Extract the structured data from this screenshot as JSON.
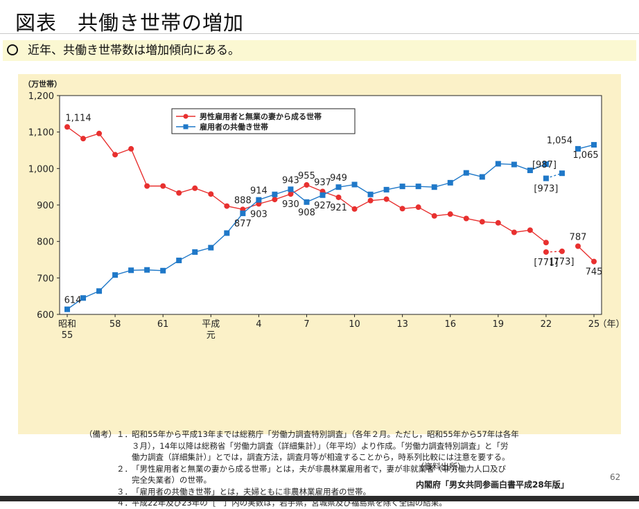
{
  "header": {
    "title": "図表　共働き世帯の増加"
  },
  "bullet": {
    "text": "近年、共働き世帯数は増加傾向にある。"
  },
  "notes": {
    "lead": "（備考）",
    "items": [
      {
        "num": "１．",
        "lines": [
          "昭和55年から平成13年までは総務庁「労働力調査特別調査」（各年２月。ただし，昭和55年から57年は各年",
          "３月），14年以降は総務省「労働力調査（詳細集計）」（年平均）より作成。「労働力調査特別調査」と「労",
          "働力調査（詳細集計）」とでは，調査方法，調査月等が相違することから，時系列比較には注意を要する。"
        ]
      },
      {
        "num": "２．",
        "lines": [
          "「男性雇用者と無業の妻から成る世帯」とは，夫が非農林業雇用者で，妻が非就業者（非労働力人口及び",
          "完全失業者）の世帯。"
        ]
      },
      {
        "num": "３．",
        "lines": [
          "「雇用者の共働き世帯」とは，夫婦ともに非農林業雇用者の世帯。"
        ]
      },
      {
        "num": "４．",
        "lines": [
          "平成22年及び23年の［　］内の実数は，岩手県，宮城県及び福島県を除く全国の結果。"
        ]
      }
    ]
  },
  "source": {
    "label": "（資料出所）",
    "text": "内閣府「男女共同参画白書平成28年版」"
  },
  "page_number": "62",
  "chart_data": {
    "type": "line",
    "ylabel": "（万世帯）",
    "xlabel": "（年）",
    "ylim": [
      600,
      1200
    ],
    "yticks": [
      600,
      700,
      800,
      900,
      1000,
      1100,
      1200
    ],
    "ytick_labels": [
      "600",
      "700",
      "800",
      "900",
      "1,000",
      "1,100",
      "1,200"
    ],
    "x": [
      1980,
      1981,
      1982,
      1983,
      1984,
      1985,
      1986,
      1987,
      1988,
      1989,
      1990,
      1991,
      1992,
      1993,
      1994,
      1995,
      1996,
      1997,
      1998,
      1999,
      2000,
      2001,
      2002,
      2003,
      2004,
      2005,
      2006,
      2007,
      2008,
      2009,
      2010,
      2011,
      2012,
      2013
    ],
    "xlim": [
      1980,
      2013
    ],
    "xticks": [
      {
        "x": 1980,
        "label": "昭和",
        "label2": "55"
      },
      {
        "x": 1983,
        "label": "58",
        "label2": ""
      },
      {
        "x": 1986,
        "label": "61",
        "label2": ""
      },
      {
        "x": 1989,
        "label": "平成",
        "label2": "元"
      },
      {
        "x": 1992,
        "label": "4",
        "label2": ""
      },
      {
        "x": 1995,
        "label": "7",
        "label2": ""
      },
      {
        "x": 1998,
        "label": "10",
        "label2": ""
      },
      {
        "x": 2001,
        "label": "13",
        "label2": ""
      },
      {
        "x": 2004,
        "label": "16",
        "label2": ""
      },
      {
        "x": 2007,
        "label": "19",
        "label2": ""
      },
      {
        "x": 2010,
        "label": "22",
        "label2": ""
      },
      {
        "x": 2013,
        "label": "25",
        "label2": ""
      }
    ],
    "series": [
      {
        "name": "男性雇用者と無業の妻から成る世帯",
        "color": "#e8302f",
        "marker": "circle",
        "values": [
          1114,
          1082,
          1096,
          1038,
          1054,
          952,
          952,
          933,
          946,
          930,
          897,
          888,
          903,
          915,
          930,
          955,
          937,
          921,
          889,
          912,
          916,
          890,
          894,
          870,
          875,
          863,
          854,
          851,
          825,
          831,
          797,
          null,
          787,
          745
        ],
        "bracketed": [
          {
            "x": 2010,
            "y": 771
          },
          {
            "x": 2011,
            "y": 773
          }
        ]
      },
      {
        "name": "雇用者の共働き世帯",
        "color": "#1f78c8",
        "marker": "square",
        "values": [
          614,
          645,
          664,
          708,
          721,
          722,
          720,
          748,
          771,
          783,
          823,
          877,
          914,
          929,
          943,
          908,
          927,
          949,
          956,
          929,
          942,
          951,
          951,
          949,
          961,
          988,
          977,
          1013,
          1011,
          995,
          1012,
          null,
          1054,
          1065
        ],
        "bracketed": [
          {
            "x": 2010,
            "y": 973
          },
          {
            "x": 2011,
            "y": 987
          }
        ]
      }
    ],
    "data_labels": [
      {
        "series": 0,
        "x": 1980,
        "y": 1114,
        "text": "1,114",
        "pos": "above"
      },
      {
        "series": 1,
        "x": 1980,
        "y": 614,
        "text": "614",
        "pos": "above"
      },
      {
        "series": 0,
        "x": 1991,
        "y": 888,
        "text": "888",
        "pos": "above"
      },
      {
        "series": 1,
        "x": 1991,
        "y": 877,
        "text": "877",
        "pos": "below"
      },
      {
        "series": 1,
        "x": 1992,
        "y": 914,
        "text": "914",
        "pos": "above"
      },
      {
        "series": 0,
        "x": 1992,
        "y": 903,
        "text": "903",
        "pos": "below"
      },
      {
        "series": 0,
        "x": 1994,
        "y": 930,
        "text": "930",
        "pos": "below"
      },
      {
        "series": 1,
        "x": 1994,
        "y": 943,
        "text": "943",
        "pos": "above"
      },
      {
        "series": 0,
        "x": 1995,
        "y": 955,
        "text": "955",
        "pos": "above"
      },
      {
        "series": 1,
        "x": 1995,
        "y": 908,
        "text": "908",
        "pos": "below"
      },
      {
        "series": 0,
        "x": 1996,
        "y": 937,
        "text": "937",
        "pos": "above"
      },
      {
        "series": 1,
        "x": 1996,
        "y": 927,
        "text": "927",
        "pos": "below"
      },
      {
        "series": 0,
        "x": 1997,
        "y": 921,
        "text": "921",
        "pos": "below"
      },
      {
        "series": 1,
        "x": 1997,
        "y": 949,
        "text": "949",
        "pos": "above"
      },
      {
        "series": 0,
        "x": 2010,
        "y": 771,
        "text": "[771]",
        "pos": "below"
      },
      {
        "series": 0,
        "x": 2011,
        "y": 773,
        "text": "[773]",
        "pos": "below"
      },
      {
        "series": 1,
        "x": 2010,
        "y": 973,
        "text": "[973]",
        "pos": "below"
      },
      {
        "series": 1,
        "x": 2011,
        "y": 987,
        "text": "[987]",
        "pos": "above-left"
      },
      {
        "series": 0,
        "x": 2012,
        "y": 787,
        "text": "787",
        "pos": "above"
      },
      {
        "series": 0,
        "x": 2013,
        "y": 745,
        "text": "745",
        "pos": "below"
      },
      {
        "series": 1,
        "x": 2012,
        "y": 1054,
        "text": "1,054",
        "pos": "above-left"
      },
      {
        "series": 1,
        "x": 2013,
        "y": 1065,
        "text": "1,065",
        "pos": "below"
      }
    ],
    "legend_position": "top-left",
    "grid": false
  }
}
